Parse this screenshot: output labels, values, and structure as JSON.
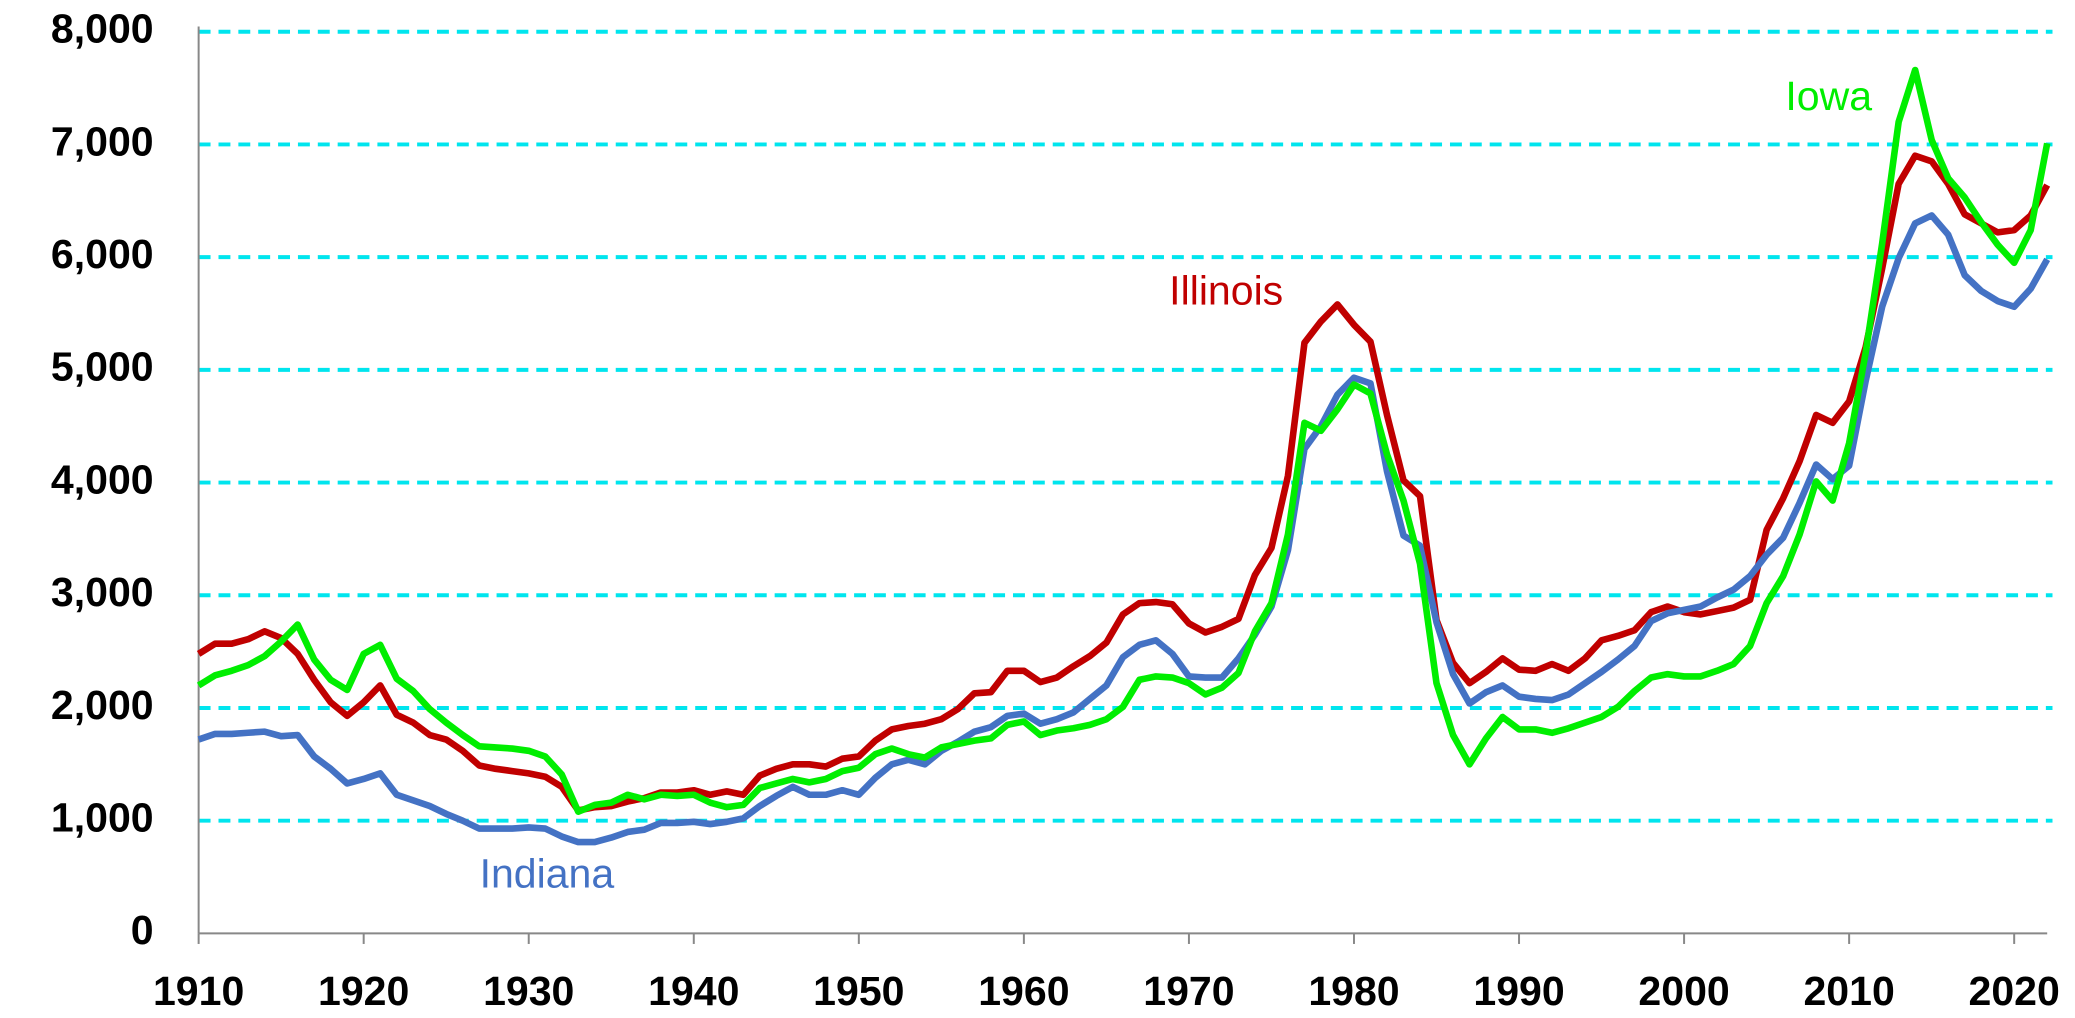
{
  "chart_data": {
    "type": "line",
    "x": [
      1910,
      1911,
      1912,
      1913,
      1914,
      1915,
      1916,
      1917,
      1918,
      1919,
      1920,
      1921,
      1922,
      1923,
      1924,
      1925,
      1926,
      1927,
      1928,
      1929,
      1930,
      1931,
      1932,
      1933,
      1934,
      1935,
      1936,
      1937,
      1938,
      1939,
      1940,
      1941,
      1942,
      1943,
      1944,
      1945,
      1946,
      1947,
      1948,
      1949,
      1950,
      1951,
      1952,
      1953,
      1954,
      1955,
      1956,
      1957,
      1958,
      1959,
      1960,
      1961,
      1962,
      1963,
      1964,
      1965,
      1966,
      1967,
      1968,
      1969,
      1970,
      1971,
      1972,
      1973,
      1974,
      1975,
      1976,
      1977,
      1978,
      1979,
      1980,
      1981,
      1982,
      1983,
      1984,
      1985,
      1986,
      1987,
      1988,
      1989,
      1990,
      1991,
      1992,
      1993,
      1994,
      1995,
      1996,
      1997,
      1998,
      1999,
      2000,
      2001,
      2002,
      2003,
      2004,
      2005,
      2006,
      2007,
      2008,
      2009,
      2010,
      2011,
      2012,
      2013,
      2014,
      2015,
      2016,
      2017,
      2018,
      2019,
      2020,
      2021,
      2022
    ],
    "series": [
      {
        "name": "Illinois",
        "color": "#c00000",
        "values": [
          2480,
          2570,
          2570,
          2610,
          2680,
          2620,
          2480,
          2250,
          2050,
          1930,
          2050,
          2200,
          1940,
          1870,
          1760,
          1720,
          1620,
          1490,
          1460,
          1440,
          1420,
          1390,
          1300,
          1090,
          1120,
          1130,
          1170,
          1200,
          1250,
          1250,
          1270,
          1230,
          1260,
          1230,
          1400,
          1460,
          1500,
          1500,
          1480,
          1550,
          1570,
          1710,
          1810,
          1840,
          1860,
          1900,
          1990,
          2130,
          2140,
          2330,
          2330,
          2230,
          2270,
          2370,
          2460,
          2580,
          2830,
          2930,
          2940,
          2920,
          2750,
          2670,
          2720,
          2790,
          3180,
          3420,
          4060,
          5240,
          5430,
          5580,
          5400,
          5250,
          4600,
          4020,
          3880,
          2780,
          2400,
          2220,
          2320,
          2440,
          2340,
          2330,
          2390,
          2330,
          2440,
          2600,
          2640,
          2690,
          2850,
          2900,
          2850,
          2830,
          2860,
          2890,
          2960,
          3580,
          3860,
          4190,
          4600,
          4530,
          4720,
          5200,
          5900,
          6650,
          6900,
          6850,
          6650,
          6380,
          6300,
          6220,
          6240,
          6370,
          6640
        ]
      },
      {
        "name": "Indiana",
        "color": "#4472c4",
        "values": [
          1720,
          1770,
          1770,
          1780,
          1790,
          1750,
          1760,
          1570,
          1460,
          1330,
          1370,
          1420,
          1230,
          1180,
          1130,
          1060,
          1000,
          930,
          930,
          930,
          940,
          930,
          860,
          810,
          810,
          850,
          900,
          920,
          980,
          980,
          990,
          970,
          990,
          1020,
          1130,
          1220,
          1300,
          1230,
          1230,
          1270,
          1230,
          1380,
          1500,
          1540,
          1500,
          1620,
          1700,
          1790,
          1830,
          1930,
          1950,
          1860,
          1900,
          1960,
          2080,
          2200,
          2450,
          2560,
          2600,
          2480,
          2280,
          2270,
          2270,
          2440,
          2650,
          2900,
          3400,
          4300,
          4500,
          4780,
          4930,
          4880,
          4100,
          3530,
          3440,
          2760,
          2300,
          2040,
          2140,
          2200,
          2100,
          2080,
          2070,
          2120,
          2220,
          2320,
          2430,
          2550,
          2770,
          2840,
          2870,
          2900,
          2980,
          3050,
          3170,
          3360,
          3510,
          3820,
          4160,
          4030,
          4150,
          4900,
          5560,
          5990,
          6300,
          6370,
          6200,
          5840,
          5700,
          5610,
          5560,
          5720,
          5980
        ]
      },
      {
        "name": "Iowa",
        "color": "#00ee00",
        "values": [
          2200,
          2290,
          2330,
          2380,
          2460,
          2590,
          2740,
          2430,
          2250,
          2160,
          2480,
          2560,
          2260,
          2150,
          1990,
          1870,
          1760,
          1660,
          1650,
          1640,
          1620,
          1570,
          1410,
          1080,
          1140,
          1160,
          1230,
          1190,
          1230,
          1220,
          1230,
          1160,
          1120,
          1140,
          1290,
          1330,
          1370,
          1340,
          1370,
          1440,
          1470,
          1590,
          1640,
          1590,
          1560,
          1650,
          1680,
          1710,
          1730,
          1850,
          1880,
          1760,
          1800,
          1820,
          1850,
          1900,
          2010,
          2250,
          2280,
          2270,
          2220,
          2120,
          2180,
          2310,
          2680,
          2930,
          3540,
          4530,
          4460,
          4650,
          4870,
          4790,
          4250,
          3840,
          3280,
          2220,
          1760,
          1500,
          1730,
          1920,
          1810,
          1810,
          1780,
          1820,
          1870,
          1920,
          2010,
          2150,
          2270,
          2300,
          2280,
          2280,
          2330,
          2390,
          2550,
          2930,
          3170,
          3540,
          4010,
          3840,
          4350,
          5150,
          6120,
          7200,
          7660,
          7040,
          6700,
          6530,
          6310,
          6110,
          5950,
          6240,
          7010
        ]
      }
    ],
    "xlim": [
      1910,
      2022
    ],
    "xticks": [
      1910,
      1920,
      1930,
      1940,
      1950,
      1960,
      1970,
      1980,
      1990,
      2000,
      2010,
      2020
    ],
    "ylim": [
      0,
      8000
    ],
    "yticks": [
      0,
      {
        "value": 1000,
        "label": "1,000"
      },
      {
        "value": 2000,
        "label": "2,000"
      },
      {
        "value": 3000,
        "label": "3,000"
      },
      {
        "value": 4000,
        "label": "4,000"
      },
      {
        "value": 5000,
        "label": "5,000"
      },
      {
        "value": 6000,
        "label": "6,000"
      },
      {
        "value": 7000,
        "label": "7,000"
      },
      {
        "value": 8000,
        "label": "8,000"
      }
    ],
    "grid": true,
    "grid_color": "#00e5ee"
  }
}
